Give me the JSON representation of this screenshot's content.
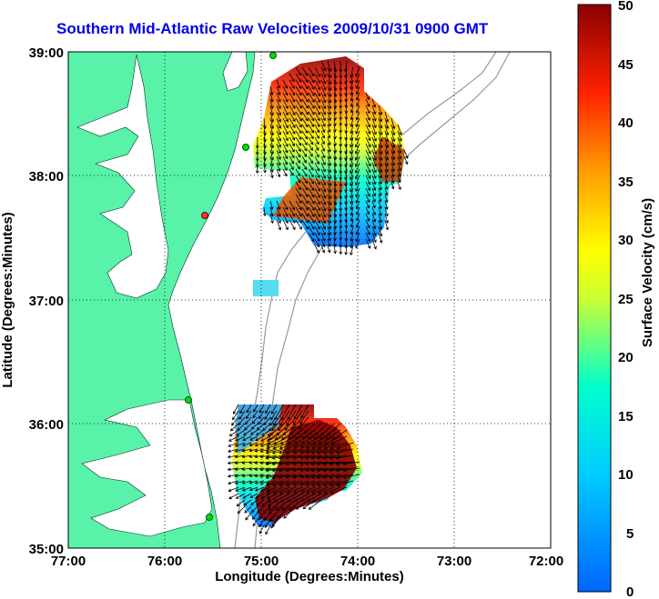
{
  "title": "Southern Mid-Atlantic Raw Velocities 2009/10/31 0900 GMT",
  "xlabel": "Longitude (Degrees:Minutes)",
  "ylabel": "Latitude (Degrees:Minutes)",
  "colorbar_label": "Surface Velocity (cm/s)",
  "x_ticks": [
    "77:00",
    "76:00",
    "75:00",
    "74:00",
    "73:00",
    "72:00"
  ],
  "y_ticks": [
    "39:00",
    "38:00",
    "37:00",
    "36:00",
    "35:00"
  ],
  "colorbar_ticks": [
    "50",
    "45",
    "40",
    "35",
    "30",
    "25",
    "20",
    "15",
    "10",
    "5",
    "0"
  ],
  "colors": {
    "land": "#58f2a8",
    "ocean": "#ffffff",
    "title": "#0000ee",
    "station": "#00dd00",
    "station_alert": "#ff3333"
  },
  "chart_data": {
    "type": "heatmap",
    "xlim": [
      -77,
      -72
    ],
    "ylim": [
      35,
      39
    ],
    "clim": [
      0,
      50
    ],
    "colormap": "jet",
    "grid": true
  }
}
